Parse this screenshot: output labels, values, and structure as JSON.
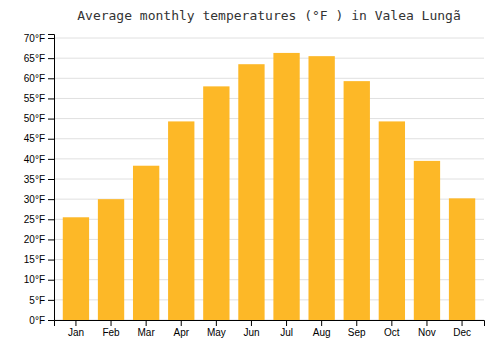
{
  "chart_data": {
    "type": "bar",
    "title": "Average monthly temperatures (°F ) in Valea Lungã",
    "categories": [
      "Jan",
      "Feb",
      "Mar",
      "Apr",
      "May",
      "Jun",
      "Jul",
      "Aug",
      "Sep",
      "Oct",
      "Nov",
      "Dec"
    ],
    "values": [
      25.5,
      30.0,
      38.3,
      49.3,
      58.0,
      63.5,
      66.3,
      65.5,
      59.3,
      49.3,
      39.5,
      30.2
    ],
    "color": "#FDB827",
    "ylim": [
      0,
      71
    ],
    "yticks": [
      {
        "value": 0,
        "label": "0°F"
      },
      {
        "value": 5,
        "label": "5°F"
      },
      {
        "value": 10,
        "label": "10°F"
      },
      {
        "value": 15,
        "label": "15°F"
      },
      {
        "value": 20,
        "label": "20°F"
      },
      {
        "value": 25,
        "label": "25°F"
      },
      {
        "value": 30,
        "label": "30°F"
      },
      {
        "value": 35,
        "label": "35°F"
      },
      {
        "value": 40,
        "label": "40°F"
      },
      {
        "value": 45,
        "label": "45°F"
      },
      {
        "value": 50,
        "label": "50°F"
      },
      {
        "value": 55,
        "label": "55°F"
      },
      {
        "value": 60,
        "label": "60°F"
      },
      {
        "value": 65,
        "label": "65°F"
      },
      {
        "value": 70,
        "label": "70°F"
      }
    ],
    "grid": true
  }
}
